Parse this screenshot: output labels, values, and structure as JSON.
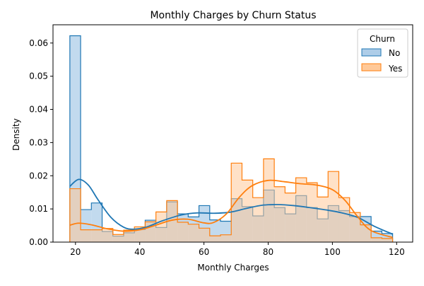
{
  "chart_data": {
    "type": "histogram",
    "title": "Monthly Charges by Churn Status",
    "xlabel": "Monthly Charges",
    "ylabel": "Density",
    "xlim": [
      13,
      125
    ],
    "ylim": [
      0,
      0.0655
    ],
    "xticks": [
      20,
      40,
      60,
      80,
      100,
      120
    ],
    "yticks": [
      0.0,
      0.01,
      0.02,
      0.03,
      0.04,
      0.05,
      0.06
    ],
    "ytick_labels": [
      "0.00",
      "0.01",
      "0.02",
      "0.03",
      "0.04",
      "0.05",
      "0.06"
    ],
    "legend": {
      "title": "Churn",
      "placement": "top-right"
    },
    "bin_edges": [
      18.25,
      21.6,
      24.95,
      28.3,
      31.65,
      35.0,
      38.35,
      41.7,
      45.05,
      48.4,
      51.75,
      55.1,
      58.45,
      61.8,
      65.15,
      68.5,
      71.85,
      75.2,
      78.55,
      81.9,
      85.25,
      88.6,
      91.95,
      95.3,
      98.65,
      102.0,
      105.35,
      108.7,
      112.05,
      115.4,
      118.75
    ],
    "series": [
      {
        "name": "No",
        "color": "#1f77b4",
        "fill": "#aecde8",
        "values": [
          0.0622,
          0.0098,
          0.0118,
          0.0032,
          0.0018,
          0.0028,
          0.0038,
          0.0066,
          0.0044,
          0.0121,
          0.0085,
          0.0076,
          0.011,
          0.0067,
          0.0063,
          0.0131,
          0.0107,
          0.0079,
          0.0157,
          0.0104,
          0.0085,
          0.014,
          0.0104,
          0.007,
          0.011,
          0.0095,
          0.0077,
          0.0077,
          0.0033,
          0.0026
        ],
        "kde": [
          [
            18.25,
            0.0168
          ],
          [
            21,
            0.0189
          ],
          [
            24,
            0.0172
          ],
          [
            27,
            0.0128
          ],
          [
            31,
            0.0075
          ],
          [
            35,
            0.0045
          ],
          [
            38,
            0.0039
          ],
          [
            42,
            0.0045
          ],
          [
            47,
            0.0064
          ],
          [
            53,
            0.0082
          ],
          [
            58,
            0.0088
          ],
          [
            63,
            0.0087
          ],
          [
            68,
            0.009
          ],
          [
            73,
            0.0101
          ],
          [
            78,
            0.0111
          ],
          [
            83,
            0.0113
          ],
          [
            88,
            0.011
          ],
          [
            93,
            0.0104
          ],
          [
            98,
            0.0097
          ],
          [
            103,
            0.0088
          ],
          [
            108,
            0.0074
          ],
          [
            113,
            0.0048
          ],
          [
            118.75,
            0.0024
          ]
        ]
      },
      {
        "name": "Yes",
        "color": "#ff7f0e",
        "fill": "#ffc999",
        "values": [
          0.0161,
          0.0037,
          0.0037,
          0.0041,
          0.0023,
          0.0036,
          0.0046,
          0.0061,
          0.0091,
          0.0125,
          0.006,
          0.0054,
          0.0042,
          0.0019,
          0.0022,
          0.0238,
          0.0187,
          0.0134,
          0.0251,
          0.0167,
          0.0148,
          0.0194,
          0.0179,
          0.0136,
          0.0213,
          0.0134,
          0.0089,
          0.0052,
          0.0013,
          0.0011
        ],
        "kde": [
          [
            18.25,
            0.0051
          ],
          [
            21,
            0.0057
          ],
          [
            25,
            0.0052
          ],
          [
            30,
            0.004
          ],
          [
            35,
            0.0033
          ],
          [
            40,
            0.0037
          ],
          [
            45,
            0.0051
          ],
          [
            50,
            0.0066
          ],
          [
            55,
            0.0069
          ],
          [
            60,
            0.0058
          ],
          [
            63,
            0.0059
          ],
          [
            67,
            0.0085
          ],
          [
            71,
            0.0135
          ],
          [
            75,
            0.017
          ],
          [
            80,
            0.0186
          ],
          [
            85,
            0.0182
          ],
          [
            90,
            0.0176
          ],
          [
            95,
            0.0172
          ],
          [
            100,
            0.0158
          ],
          [
            104,
            0.0125
          ],
          [
            108,
            0.0075
          ],
          [
            112,
            0.0035
          ],
          [
            118.75,
            0.0014
          ]
        ]
      }
    ]
  }
}
